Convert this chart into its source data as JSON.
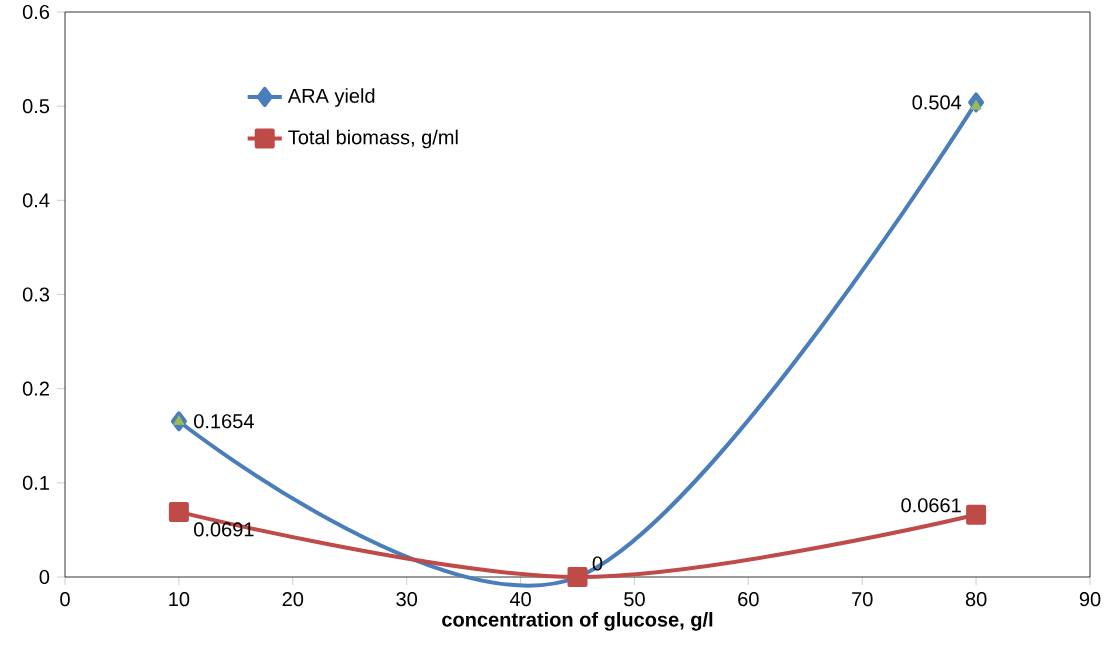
{
  "chart_data": {
    "type": "line",
    "xlabel": "concentration of glucose, g/l",
    "x": [
      10,
      45,
      80
    ],
    "xlim": [
      0,
      90
    ],
    "xticks": [
      0,
      10,
      20,
      30,
      40,
      50,
      60,
      70,
      80,
      90
    ],
    "ylim": [
      0,
      0.6
    ],
    "yticks": [
      0,
      0.1,
      0.2,
      0.3,
      0.4,
      0.5,
      0.6
    ],
    "grid": false,
    "legend": "top left",
    "line_style": "solid",
    "series": [
      {
        "name": "ARA yield",
        "color": "#4a7ebb",
        "marker": "diamond",
        "values": [
          0.1654,
          0,
          0.504
        ],
        "value_labels": [
          "0.1654",
          "0",
          "0.504"
        ]
      },
      {
        "name": "Total biomass, g/ml",
        "color": "#be4b48",
        "marker": "square",
        "values": [
          0.0691,
          0,
          0.0661
        ],
        "value_labels": [
          "0.0691",
          null,
          "0.0661"
        ]
      },
      {
        "type": "scatter",
        "color": "#9bbb59",
        "marker": "triangle",
        "values": [
          0.165,
          null,
          0.5
        ]
      }
    ]
  }
}
